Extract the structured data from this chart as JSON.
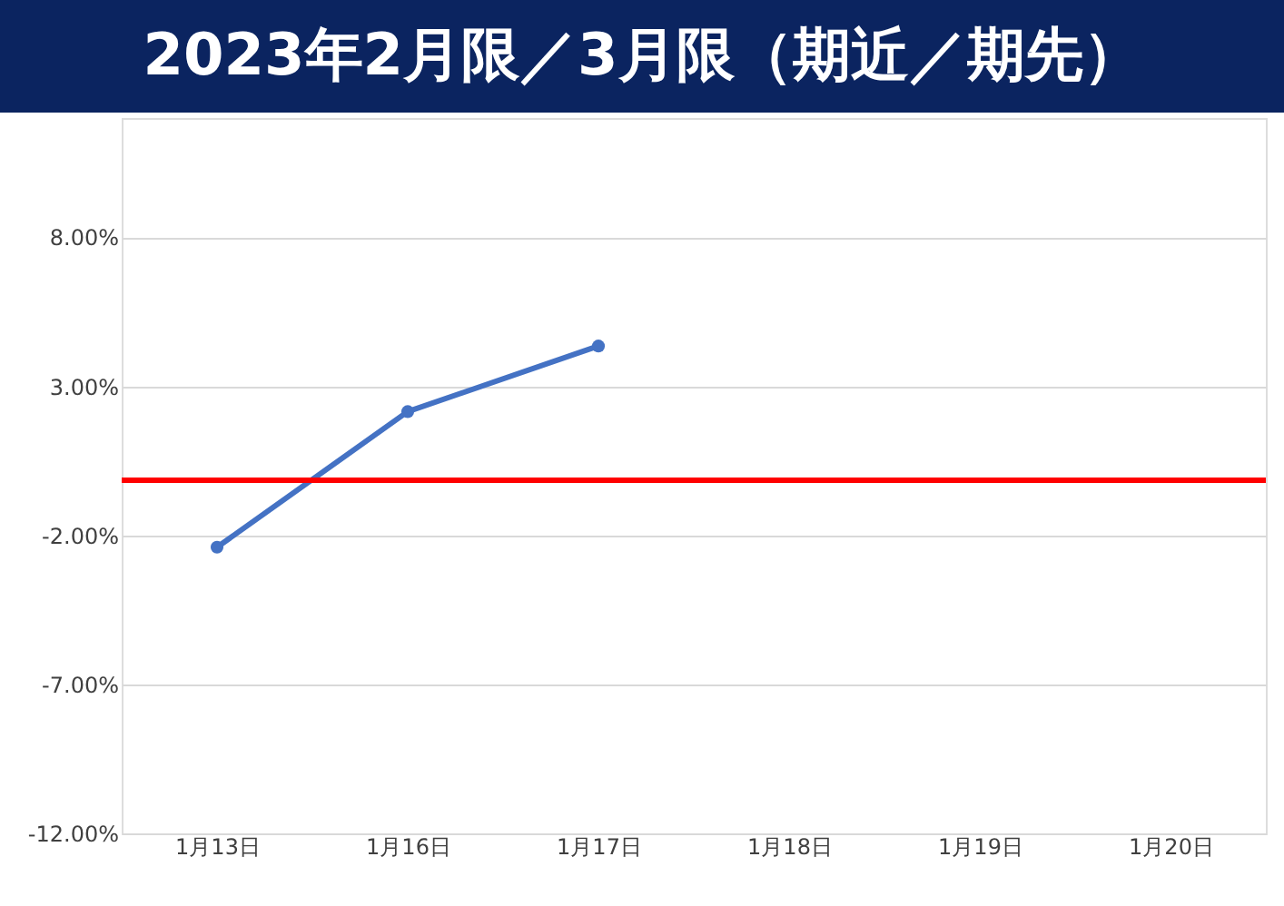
{
  "chart_data": {
    "type": "line",
    "title": "2023年2月限／3月限（期近／期先）",
    "categories": [
      "1月13日",
      "1月16日",
      "1月17日",
      "1月18日",
      "1月19日",
      "1月20日"
    ],
    "series": [
      {
        "color": "#4472c4",
        "values": [
          -2.4,
          2.15,
          4.35,
          null,
          null,
          null
        ]
      }
    ],
    "ylim": [
      -12,
      12
    ],
    "yticks": [
      {
        "value": -12,
        "label": "-12.00%"
      },
      {
        "value": -7,
        "label": "-7.00%"
      },
      {
        "value": -2,
        "label": "-2.00%"
      },
      {
        "value": 3,
        "label": "3.00%"
      },
      {
        "value": 8,
        "label": "8.00%"
      }
    ],
    "ref_lines": [
      {
        "axis": "y",
        "value": -0.15,
        "color": "#ff0000"
      }
    ],
    "grid": "y",
    "marker": "circle",
    "line_style": "solid"
  }
}
